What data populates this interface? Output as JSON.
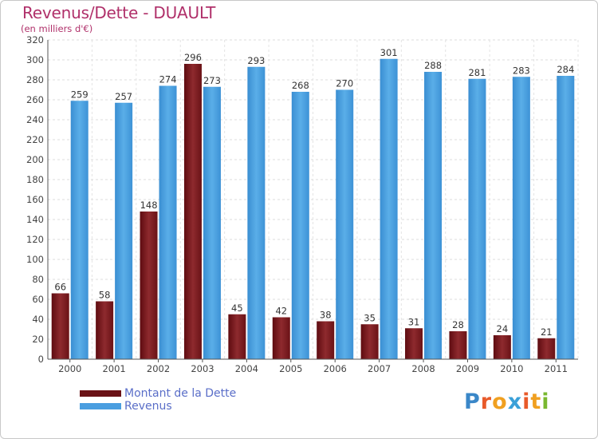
{
  "header": {
    "title": "Revenus/Dette - DUAULT",
    "subtitle": "(en milliers d'€)"
  },
  "legend": {
    "dette_label": "Montant de la Dette",
    "revenus_label": "Revenus"
  },
  "logo": {
    "letters": [
      "P",
      "r",
      "o",
      "x",
      "i",
      "t",
      "i"
    ],
    "colors": [
      "#3a87c8",
      "#e85a2a",
      "#f0a020",
      "#3aa0d8",
      "#e85a2a",
      "#f0a020",
      "#7ab830"
    ]
  },
  "colors": {
    "dette": "#7a1a1e",
    "revenus": "#4a9ee0",
    "title": "#b0306a"
  },
  "chart_data": {
    "type": "bar",
    "categories": [
      "2000",
      "2001",
      "2002",
      "2003",
      "2004",
      "2005",
      "2006",
      "2007",
      "2008",
      "2009",
      "2010",
      "2011"
    ],
    "series": [
      {
        "name": "Montant de la Dette",
        "values": [
          66,
          58,
          148,
          296,
          45,
          42,
          38,
          35,
          31,
          28,
          24,
          21
        ]
      },
      {
        "name": "Revenus",
        "values": [
          259,
          257,
          274,
          273,
          293,
          268,
          270,
          301,
          288,
          281,
          283,
          284
        ]
      }
    ],
    "ylim": [
      0,
      320
    ],
    "yticks": [
      0,
      20,
      40,
      60,
      80,
      100,
      120,
      140,
      160,
      180,
      200,
      220,
      240,
      260,
      280,
      300,
      320
    ],
    "grid": true
  }
}
